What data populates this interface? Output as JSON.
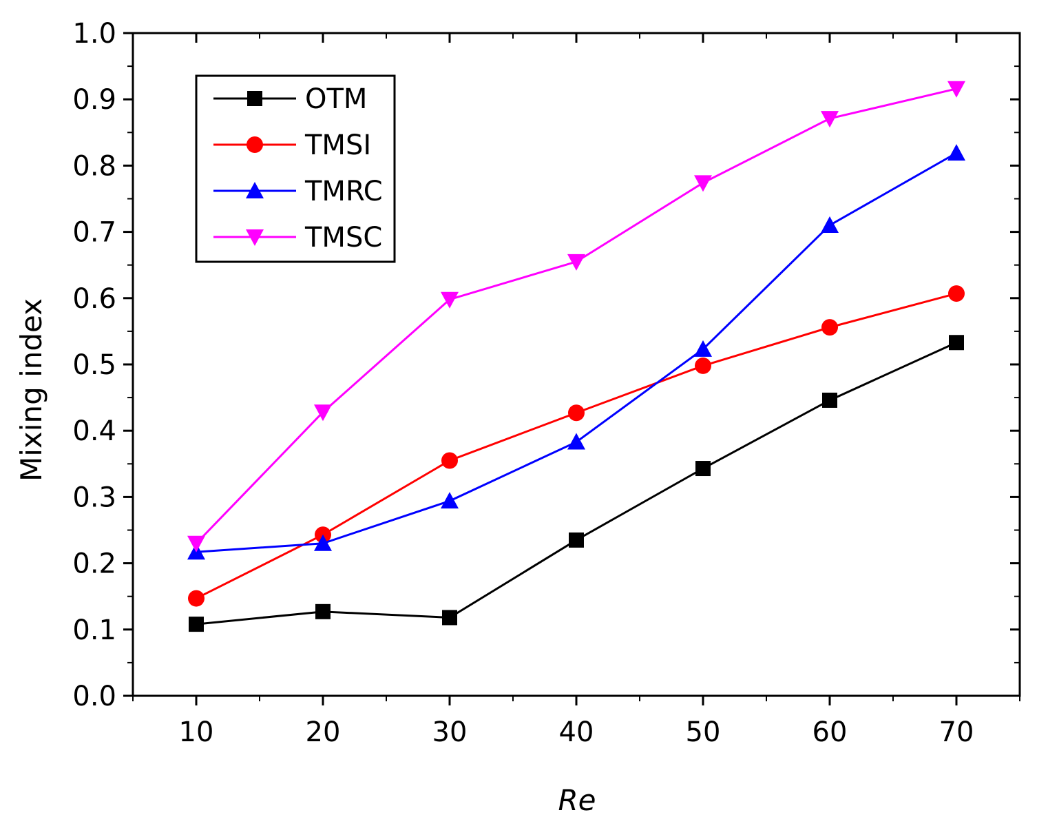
{
  "chart_data": {
    "type": "line",
    "title": "",
    "xlabel": "Re",
    "ylabel": "Mixing index",
    "x": [
      10,
      20,
      30,
      40,
      50,
      60,
      70
    ],
    "xlim": [
      5,
      75
    ],
    "ylim": [
      0.0,
      1.0
    ],
    "xticks": [
      "10",
      "20",
      "30",
      "40",
      "50",
      "60",
      "70"
    ],
    "yticks": [
      "0.0",
      "0.1",
      "0.2",
      "0.3",
      "0.4",
      "0.5",
      "0.6",
      "0.7",
      "0.8",
      "0.9",
      "1.0"
    ],
    "grid": false,
    "legend_position": "top-left",
    "series": [
      {
        "name": "OTM",
        "color": "#000000",
        "marker": "square",
        "values": [
          0.108,
          0.127,
          0.118,
          0.235,
          0.343,
          0.446,
          0.533
        ]
      },
      {
        "name": "TMSI",
        "color": "#ff0000",
        "marker": "circle",
        "values": [
          0.147,
          0.243,
          0.355,
          0.427,
          0.498,
          0.556,
          0.607
        ]
      },
      {
        "name": "TMRC",
        "color": "#0000ff",
        "marker": "triangle-up",
        "values": [
          0.217,
          0.23,
          0.294,
          0.383,
          0.523,
          0.71,
          0.819
        ]
      },
      {
        "name": "TMSC",
        "color": "#ff00ff",
        "marker": "triangle-down",
        "values": [
          0.23,
          0.428,
          0.598,
          0.655,
          0.774,
          0.871,
          0.916
        ]
      }
    ]
  }
}
